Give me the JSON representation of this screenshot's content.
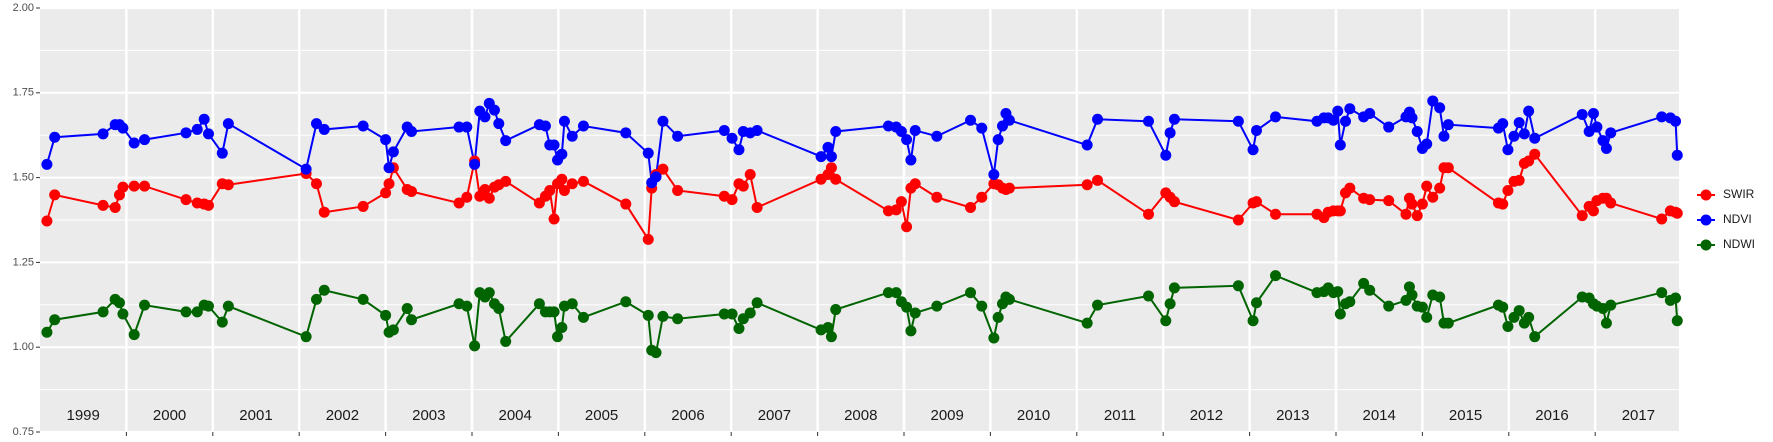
{
  "chart_data": {
    "type": "line",
    "x": [
      1999.08,
      1999.17,
      1999.73,
      1999.87,
      1999.92,
      1999.96,
      2000.09,
      2000.21,
      2000.69,
      2000.82,
      2000.9,
      2000.95,
      2001.11,
      2001.18,
      2002.08,
      2002.2,
      2002.29,
      2002.74,
      2003.0,
      2003.04,
      2003.09,
      2003.25,
      2003.3,
      2003.85,
      2003.94,
      2004.03,
      2004.09,
      2004.15,
      2004.2,
      2004.26,
      2004.31,
      2004.39,
      2004.78,
      2004.85,
      2004.9,
      2004.95,
      2004.99,
      2005.04,
      2005.07,
      2005.16,
      2005.29,
      2005.78,
      2006.04,
      2006.08,
      2006.13,
      2006.21,
      2006.38,
      2006.92,
      2007.01,
      2007.09,
      2007.14,
      2007.22,
      2007.3,
      2008.04,
      2008.12,
      2008.16,
      2008.21,
      2008.82,
      2008.91,
      2008.97,
      2009.03,
      2009.08,
      2009.13,
      2009.38,
      2009.77,
      2009.9,
      2010.04,
      2010.09,
      2010.14,
      2010.18,
      2010.22,
      2011.12,
      2011.24,
      2011.83,
      2012.03,
      2012.08,
      2012.13,
      2012.87,
      2013.04,
      2013.08,
      2013.3,
      2013.78,
      2013.86,
      2013.91,
      2013.97,
      2014.02,
      2014.05,
      2014.11,
      2014.16,
      2014.32,
      2014.39,
      2014.61,
      2014.81,
      2014.85,
      2014.88,
      2014.94,
      2015.0,
      2015.05,
      2015.12,
      2015.2,
      2015.25,
      2015.3,
      2015.88,
      2015.93,
      2015.99,
      2016.06,
      2016.12,
      2016.18,
      2016.23,
      2016.3,
      2016.85,
      2016.93,
      2016.98,
      2017.02,
      2017.09,
      2017.13,
      2017.18,
      2017.77,
      2017.87,
      2017.93,
      2017.95
    ],
    "series": [
      {
        "name": "SWIR",
        "color": "#ff0000",
        "values": [
          1.372,
          1.449,
          1.418,
          1.412,
          1.449,
          1.472,
          1.475,
          1.475,
          1.435,
          1.425,
          1.422,
          1.418,
          1.482,
          1.479,
          1.512,
          1.482,
          1.398,
          1.415,
          1.455,
          1.482,
          1.529,
          1.465,
          1.459,
          1.425,
          1.442,
          1.549,
          1.445,
          1.465,
          1.439,
          1.472,
          1.479,
          1.489,
          1.425,
          1.445,
          1.462,
          1.378,
          1.482,
          1.495,
          1.462,
          1.482,
          1.489,
          1.422,
          1.318,
          1.469,
          1.509,
          1.525,
          1.462,
          1.445,
          1.435,
          1.482,
          1.475,
          1.509,
          1.412,
          1.495,
          1.509,
          1.529,
          1.495,
          1.402,
          1.405,
          1.429,
          1.355,
          1.469,
          1.482,
          1.442,
          1.412,
          1.442,
          1.482,
          1.479,
          1.469,
          1.465,
          1.469,
          1.479,
          1.492,
          1.392,
          1.455,
          1.442,
          1.429,
          1.375,
          1.425,
          1.429,
          1.392,
          1.392,
          1.382,
          1.398,
          1.402,
          1.402,
          1.402,
          1.455,
          1.469,
          1.439,
          1.435,
          1.432,
          1.392,
          1.439,
          1.422,
          1.388,
          1.422,
          1.475,
          1.442,
          1.469,
          1.529,
          1.529,
          1.425,
          1.422,
          1.462,
          1.489,
          1.492,
          1.542,
          1.549,
          1.569,
          1.388,
          1.415,
          1.402,
          1.432,
          1.439,
          1.439,
          1.425,
          1.378,
          1.402,
          1.398,
          1.395
        ]
      },
      {
        "name": "NDVI",
        "color": "#0000ff",
        "values": [
          1.539,
          1.619,
          1.629,
          1.656,
          1.656,
          1.646,
          1.602,
          1.612,
          1.632,
          1.642,
          1.672,
          1.629,
          1.572,
          1.659,
          1.525,
          1.659,
          1.642,
          1.652,
          1.612,
          1.529,
          1.576,
          1.649,
          1.636,
          1.649,
          1.649,
          1.539,
          1.696,
          1.679,
          1.719,
          1.699,
          1.659,
          1.609,
          1.656,
          1.652,
          1.596,
          1.596,
          1.552,
          1.569,
          1.666,
          1.622,
          1.652,
          1.632,
          1.572,
          1.485,
          1.502,
          1.666,
          1.622,
          1.639,
          1.616,
          1.582,
          1.636,
          1.632,
          1.639,
          1.562,
          1.589,
          1.562,
          1.636,
          1.652,
          1.649,
          1.636,
          1.612,
          1.552,
          1.639,
          1.622,
          1.669,
          1.646,
          1.509,
          1.612,
          1.652,
          1.689,
          1.669,
          1.596,
          1.672,
          1.666,
          1.566,
          1.632,
          1.672,
          1.666,
          1.582,
          1.639,
          1.679,
          1.666,
          1.676,
          1.676,
          1.669,
          1.696,
          1.596,
          1.666,
          1.703,
          1.679,
          1.689,
          1.649,
          1.679,
          1.693,
          1.676,
          1.636,
          1.586,
          1.599,
          1.726,
          1.706,
          1.622,
          1.656,
          1.646,
          1.659,
          1.582,
          1.622,
          1.662,
          1.629,
          1.696,
          1.616,
          1.686,
          1.636,
          1.689,
          1.649,
          1.609,
          1.586,
          1.632,
          1.679,
          1.676,
          1.666,
          1.566
        ]
      },
      {
        "name": "NDWI",
        "color": "#006400",
        "values": [
          1.044,
          1.081,
          1.104,
          1.141,
          1.131,
          1.098,
          1.037,
          1.124,
          1.104,
          1.104,
          1.124,
          1.121,
          1.074,
          1.121,
          1.031,
          1.141,
          1.168,
          1.141,
          1.094,
          1.044,
          1.051,
          1.114,
          1.081,
          1.128,
          1.121,
          1.004,
          1.161,
          1.148,
          1.161,
          1.128,
          1.114,
          1.017,
          1.128,
          1.104,
          1.104,
          1.104,
          1.031,
          1.058,
          1.121,
          1.128,
          1.088,
          1.134,
          1.094,
          0.991,
          0.984,
          1.091,
          1.084,
          1.098,
          1.098,
          1.055,
          1.084,
          1.101,
          1.131,
          1.051,
          1.058,
          1.031,
          1.111,
          1.161,
          1.161,
          1.134,
          1.118,
          1.048,
          1.101,
          1.121,
          1.161,
          1.121,
          1.027,
          1.088,
          1.128,
          1.148,
          1.141,
          1.071,
          1.124,
          1.151,
          1.078,
          1.128,
          1.175,
          1.181,
          1.078,
          1.131,
          1.211,
          1.161,
          1.164,
          1.175,
          1.161,
          1.164,
          1.098,
          1.128,
          1.134,
          1.188,
          1.168,
          1.121,
          1.138,
          1.178,
          1.154,
          1.121,
          1.118,
          1.088,
          1.154,
          1.148,
          1.071,
          1.071,
          1.124,
          1.118,
          1.061,
          1.088,
          1.108,
          1.071,
          1.088,
          1.031,
          1.148,
          1.145,
          1.128,
          1.121,
          1.114,
          1.071,
          1.124,
          1.161,
          1.138,
          1.145,
          1.078
        ]
      }
    ],
    "xlim": [
      1999,
      2017.97
    ],
    "xticks": [
      {
        "value": 1999.5,
        "label": "1999"
      },
      {
        "value": 2000.5,
        "label": "2000"
      },
      {
        "value": 2001.5,
        "label": "2001"
      },
      {
        "value": 2002.5,
        "label": "2002"
      },
      {
        "value": 2003.5,
        "label": "2003"
      },
      {
        "value": 2004.5,
        "label": "2004"
      },
      {
        "value": 2005.5,
        "label": "2005"
      },
      {
        "value": 2006.5,
        "label": "2006"
      },
      {
        "value": 2007.5,
        "label": "2007"
      },
      {
        "value": 2008.5,
        "label": "2008"
      },
      {
        "value": 2009.5,
        "label": "2009"
      },
      {
        "value": 2010.5,
        "label": "2010"
      },
      {
        "value": 2011.5,
        "label": "2011"
      },
      {
        "value": 2012.5,
        "label": "2012"
      },
      {
        "value": 2013.5,
        "label": "2013"
      },
      {
        "value": 2014.5,
        "label": "2014"
      },
      {
        "value": 2015.5,
        "label": "2015"
      },
      {
        "value": 2016.5,
        "label": "2016"
      },
      {
        "value": 2017.5,
        "label": "2017"
      }
    ],
    "xgrid": [
      2000,
      2001,
      2002,
      2003,
      2004,
      2005,
      2006,
      2007,
      2008,
      2009,
      2010,
      2011,
      2012,
      2013,
      2014,
      2015,
      2016,
      2017
    ],
    "ylim": [
      0.75,
      2.0
    ],
    "yticks": [
      0.75,
      {
        "value": 1,
        "label": "1.00"
      },
      1.25,
      {
        "value": 1.5,
        "label": "1.50"
      },
      1.75,
      {
        "value": 2,
        "label": "2.00"
      }
    ],
    "yminor": [
      0.875,
      1.125,
      1.375,
      1.625,
      1.875
    ],
    "grid": true,
    "legend": "right"
  }
}
